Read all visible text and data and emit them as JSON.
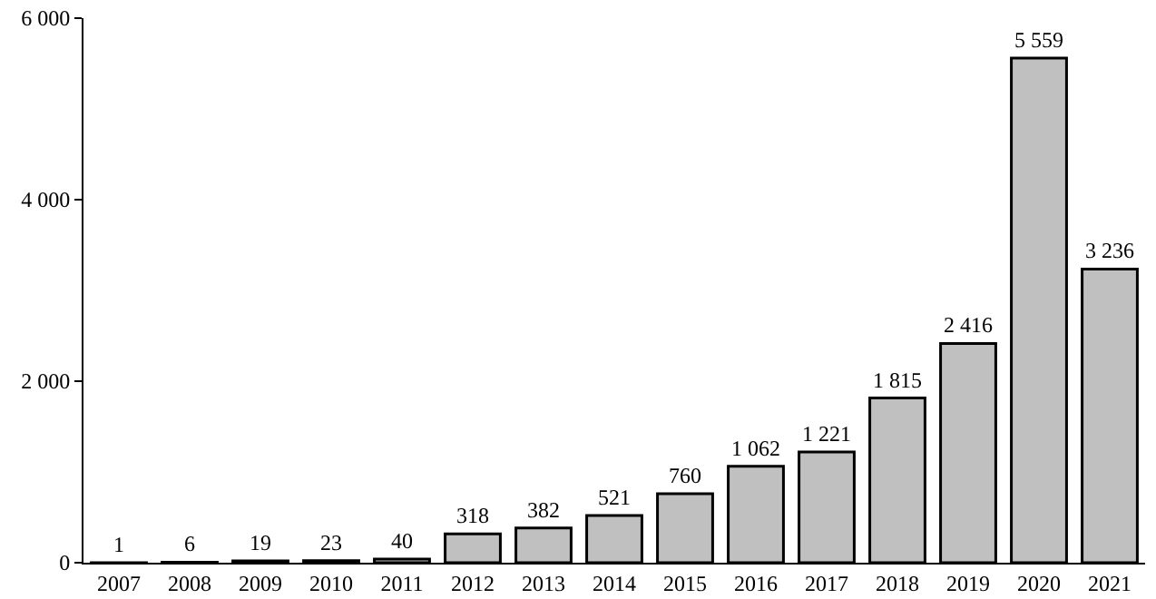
{
  "chart_data": {
    "type": "bar",
    "categories": [
      "2007",
      "2008",
      "2009",
      "2010",
      "2011",
      "2012",
      "2013",
      "2014",
      "2015",
      "2016",
      "2017",
      "2018",
      "2019",
      "2020",
      "2021"
    ],
    "values": [
      1,
      6,
      19,
      23,
      40,
      318,
      382,
      521,
      760,
      1062,
      1221,
      1815,
      2416,
      5559,
      3236
    ],
    "value_labels": [
      "1",
      "6",
      "19",
      "23",
      "40",
      "318",
      "382",
      "521",
      "760",
      "1 062",
      "1 221",
      "1 815",
      "2 416",
      "5 559",
      "3 236"
    ],
    "color": "#c0c0c0",
    "ylim": [
      0,
      6000
    ],
    "yticks": [
      0,
      {
        "value": 2000,
        "label": "2 000"
      },
      {
        "value": 4000,
        "label": "4 000"
      },
      {
        "value": 6000,
        "label": "6 000"
      }
    ],
    "grid": false
  }
}
